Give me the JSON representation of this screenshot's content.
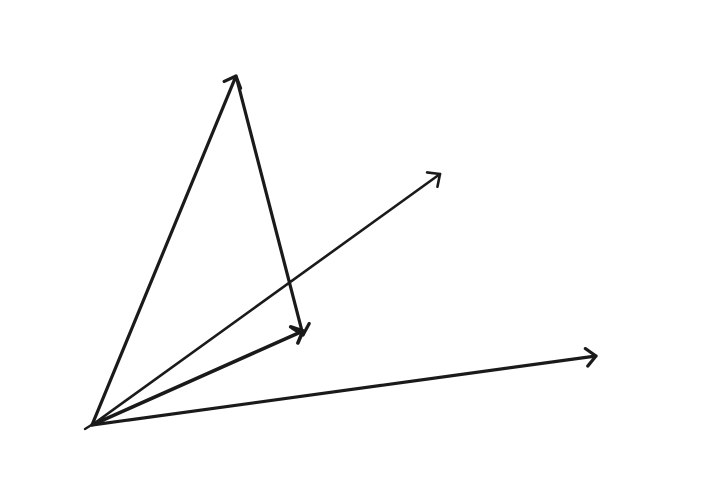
{
  "diagram": {
    "stroke_color": "#1a1a1a",
    "background_color": "#ffffff",
    "vectors": [
      {
        "id": "vector-a"
      },
      {
        "id": "vector-b"
      },
      {
        "id": "vector-c"
      },
      {
        "id": "vector-d"
      },
      {
        "id": "vector-e"
      }
    ]
  }
}
